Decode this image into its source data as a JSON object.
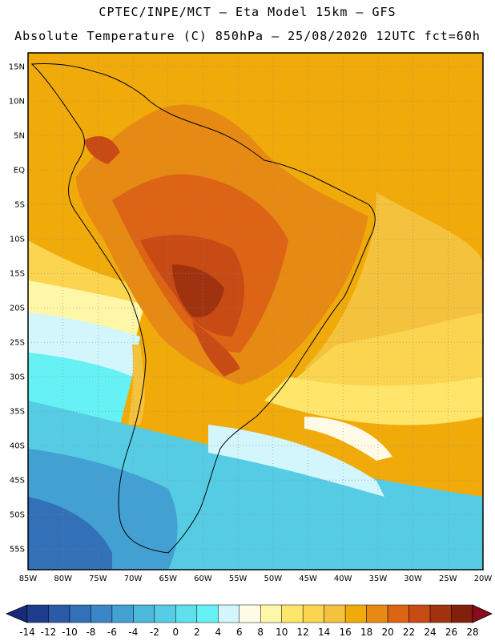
{
  "header": {
    "line1": "CPTEC/INPE/MCT —  Eta Model 15km — GFS",
    "line2": "Absolute Temperature (C) 850hPa — 25/08/2020 12UTC fct=60h"
  },
  "map": {
    "lon_labels": [
      "85W",
      "80W",
      "75W",
      "70W",
      "65W",
      "60W",
      "55W",
      "50W",
      "45W",
      "40W",
      "35W",
      "30W",
      "25W",
      "20W"
    ],
    "lat_labels": [
      "15N",
      "10N",
      "5N",
      "EQ",
      "5S",
      "10S",
      "15S",
      "20S",
      "25S",
      "30S",
      "35S",
      "40S",
      "45S",
      "50S",
      "55S"
    ],
    "lon_range": [
      -85,
      -20
    ],
    "lat_range": [
      -58,
      17
    ],
    "grid_lines": true
  },
  "colorbar": {
    "labels": [
      "-14",
      "-12",
      "-10",
      "-8",
      "-6",
      "-4",
      "-2",
      "0",
      "2",
      "4",
      "6",
      "8",
      "10",
      "12",
      "14",
      "16",
      "18",
      "20",
      "22",
      "24",
      "26",
      "28"
    ],
    "colors": [
      "#1e3c8c",
      "#2a5aa8",
      "#3270b8",
      "#3a86c6",
      "#42a0d2",
      "#4bb8dc",
      "#55cce4",
      "#5fe0ec",
      "#66f2f4",
      "#d2f6fb",
      "#fffbe6",
      "#fff7a8",
      "#ffe66a",
      "#fbd550",
      "#f4c23c",
      "#f0ab0a",
      "#e68a14",
      "#dc6414",
      "#c84a14",
      "#a03210",
      "#82200c"
    ],
    "under_color": "#1a2a7a",
    "over_color": "#8c0a1e"
  }
}
